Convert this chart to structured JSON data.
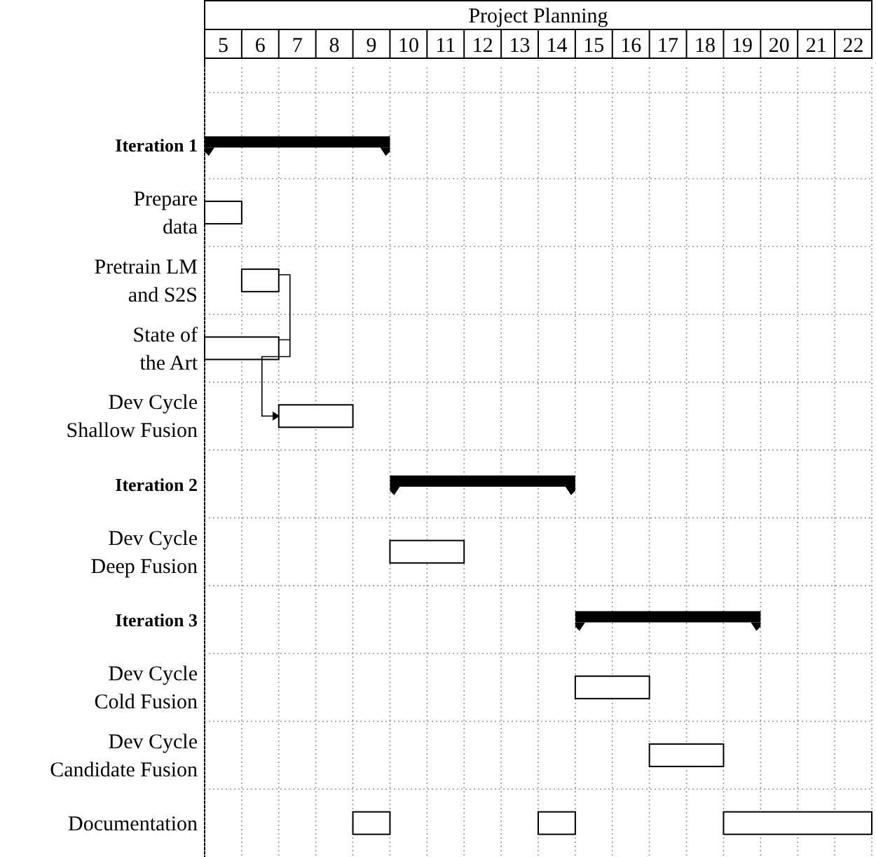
{
  "chart_data": {
    "type": "bar",
    "orientation": "horizontal",
    "title": "Project Planning",
    "categories": [
      "Iteration 1",
      "Prepare\ndata",
      "Pretrain LM\nand S2S",
      "State of\nthe Art",
      "Dev Cycle\nShallow Fusion",
      "Iteration 2",
      "Dev Cycle\nDeep Fusion",
      "Iteration 3",
      "Dev Cycle\nCold Fusion",
      "Dev Cycle\nCandidate Fusion",
      "Documentation"
    ],
    "series": [
      {
        "color": "#000000",
        "base": [
          5,
          null,
          null,
          null,
          null,
          10,
          null,
          15,
          null,
          null,
          null
        ],
        "values": [
          5,
          null,
          null,
          null,
          null,
          5,
          null,
          5,
          null,
          null,
          null
        ]
      },
      {
        "color": "#ffffff",
        "base": [
          null,
          5,
          6,
          5,
          7,
          null,
          10,
          null,
          15,
          17,
          9
        ],
        "values": [
          null,
          1,
          1,
          2,
          2,
          null,
          2,
          null,
          2,
          2,
          1
        ]
      },
      {
        "color": "#ffffff",
        "base": [
          null,
          null,
          null,
          null,
          null,
          null,
          null,
          null,
          null,
          null,
          14
        ],
        "values": [
          null,
          null,
          null,
          null,
          null,
          null,
          null,
          null,
          null,
          null,
          1
        ]
      },
      {
        "color": "#ffffff",
        "base": [
          null,
          null,
          null,
          null,
          null,
          null,
          null,
          null,
          null,
          null,
          19
        ],
        "values": [
          null,
          null,
          null,
          null,
          null,
          null,
          null,
          null,
          null,
          null,
          4
        ]
      }
    ],
    "xlim": [
      5,
      23
    ],
    "xticks": [
      {
        "value": 5.5,
        "label": "5"
      },
      {
        "value": 6.5,
        "label": "6"
      },
      {
        "value": 7.5,
        "label": "7"
      },
      {
        "value": 8.5,
        "label": "8"
      },
      {
        "value": 9.5,
        "label": "9"
      },
      {
        "value": 10.5,
        "label": "10"
      },
      {
        "value": 11.5,
        "label": "11"
      },
      {
        "value": 12.5,
        "label": "12"
      },
      {
        "value": 13.5,
        "label": "13"
      },
      {
        "value": 14.5,
        "label": "14"
      },
      {
        "value": 15.5,
        "label": "15"
      },
      {
        "value": 16.5,
        "label": "16"
      },
      {
        "value": 17.5,
        "label": "17"
      },
      {
        "value": 18.5,
        "label": "18"
      },
      {
        "value": 19.5,
        "label": "19"
      },
      {
        "value": 20.5,
        "label": "20"
      },
      {
        "value": 21.5,
        "label": "21"
      },
      {
        "value": 22.5,
        "label": "22"
      }
    ],
    "grid": true
  }
}
